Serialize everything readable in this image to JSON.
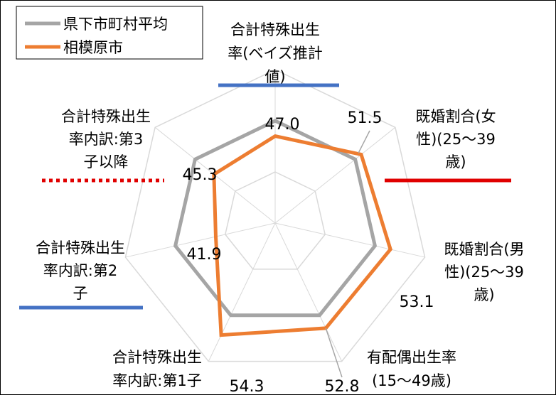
{
  "chart_data": {
    "type": "radar",
    "axes": [
      {
        "label_lines": [
          "合計特殊出生",
          "率(ベイズ推計",
          "値)"
        ],
        "underline": "#4472C4",
        "underline_style": "solid"
      },
      {
        "label_lines": [
          "既婚割合(女",
          "性)(25～39",
          "歳)"
        ],
        "underline": "#E00000",
        "underline_style": "solid"
      },
      {
        "label_lines": [
          "既婚割合(男",
          "性)(25～39",
          "歳)"
        ],
        "underline": "",
        "underline_style": ""
      },
      {
        "label_lines": [
          "有配偶出生率",
          "(15～49歳)"
        ],
        "underline": "",
        "underline_style": ""
      },
      {
        "label_lines": [
          "合計特殊出生",
          "率内訳:第1子"
        ],
        "underline": "",
        "underline_style": ""
      },
      {
        "label_lines": [
          "合計特殊出生",
          "率内訳:第2",
          "子"
        ],
        "underline": "#4472C4",
        "underline_style": "solid"
      },
      {
        "label_lines": [
          "合計特殊出生",
          "率内訳:第3",
          "子以降"
        ],
        "underline": "#E00000",
        "underline_style": "dotted"
      }
    ],
    "series": [
      {
        "name": "県下市町村平均",
        "color": "#A5A5A5",
        "values": [
          50,
          50,
          50,
          50,
          50,
          50,
          50
        ]
      },
      {
        "name": "相模原市",
        "color": "#ED7D31",
        "values": [
          47.0,
          51.5,
          53.1,
          52.8,
          54.3,
          41.9,
          45.3
        ]
      }
    ],
    "value_labels": [
      "47.0",
      "51.5",
      "53.1",
      "52.8",
      "54.3",
      "41.9",
      "45.3"
    ],
    "range": [
      30,
      60
    ],
    "gridlines": [
      40,
      50,
      60
    ],
    "legend_position": "top-left"
  }
}
